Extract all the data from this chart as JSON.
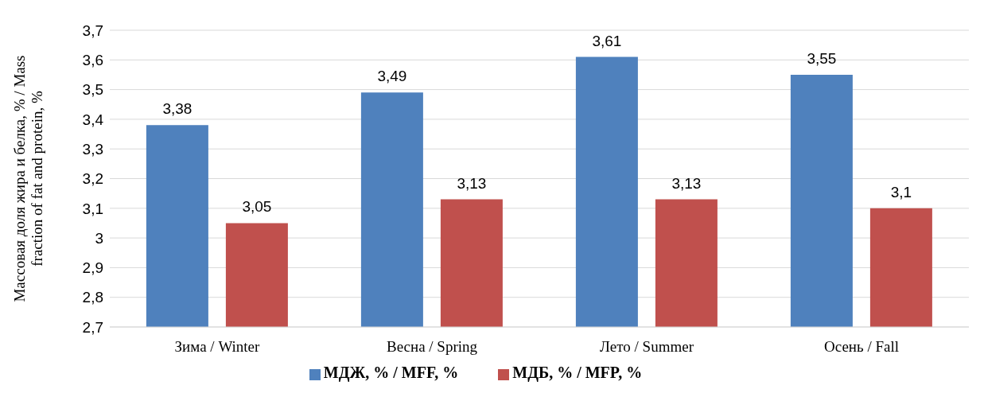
{
  "chart_data": {
    "type": "bar",
    "ylabel": "Массовая доля жира и белка, % / Mass fraction of fat and protein, %",
    "categories": [
      "Зима / Winter",
      "Весна / Spring",
      "Лето / Summer",
      "Осень / Fall"
    ],
    "series": [
      {
        "name": "МДЖ, % / MFF, %",
        "color": "#4f81bd",
        "values": [
          3.38,
          3.49,
          3.61,
          3.55
        ],
        "value_labels": [
          "3,38",
          "3,49",
          "3,61",
          "3,55"
        ]
      },
      {
        "name": "МДБ, % / MFP, %",
        "color": "#c0504d",
        "values": [
          3.05,
          3.13,
          3.13,
          3.1
        ],
        "value_labels": [
          "3,05",
          "3,13",
          "3,13",
          "3,1"
        ]
      }
    ],
    "ylim": [
      2.7,
      3.7
    ],
    "yticks": [
      {
        "value": 2.7,
        "label": "2,7"
      },
      {
        "value": 2.8,
        "label": "2,8"
      },
      {
        "value": 2.9,
        "label": "2,9"
      },
      {
        "value": 3,
        "label": "3"
      },
      {
        "value": 3.1,
        "label": "3,1"
      },
      {
        "value": 3.2,
        "label": "3,2"
      },
      {
        "value": 3.3,
        "label": "3,3"
      },
      {
        "value": 3.4,
        "label": "3,4"
      },
      {
        "value": 3.5,
        "label": "3,5"
      },
      {
        "value": 3.6,
        "label": "3,6"
      },
      {
        "value": 3.7,
        "label": "3,7"
      }
    ],
    "grid": "y",
    "legend": "bottom"
  }
}
